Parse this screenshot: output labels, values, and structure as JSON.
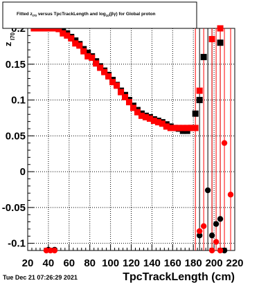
{
  "chart_data": {
    "type": "scatter",
    "title": "Fitted  z_{I70} versus TpcTrackLength and log_{10}(#beta#gamma) for Global proton",
    "title_parts": {
      "pre": "Fitted  z",
      "sub1": "I70",
      "mid": " versus TpcTrackLength and log",
      "sub2": "10",
      "post": "(βγ) for Global proton"
    },
    "xlabel": "TpcTrackLength (cm)",
    "ylabel_main": "z",
    "ylabel_sub": "I70",
    "xlim": [
      20,
      220
    ],
    "ylim": [
      -0.11,
      0.2
    ],
    "xticks": [
      20,
      40,
      60,
      80,
      100,
      120,
      140,
      160,
      180,
      200,
      220
    ],
    "yticks": [
      -0.1,
      -0.05,
      0,
      0.05,
      0.1,
      0.15,
      0.2
    ],
    "ytick_labels": [
      "-0.1",
      "-0.05",
      "0",
      "0.05",
      "0.1",
      "0.15",
      "0.2"
    ],
    "grid": true,
    "footer": "Tue Dec 21 07:26:29 2021",
    "series": [
      {
        "color": "#000000",
        "marker": "square",
        "points": [
          [
            26,
            0.205
          ],
          [
            30,
            0.207
          ],
          [
            34,
            0.209
          ],
          [
            38,
            0.207
          ],
          [
            42,
            0.205
          ],
          [
            46,
            0.203
          ],
          [
            50,
            0.2
          ],
          [
            54,
            0.197
          ],
          [
            58,
            0.193
          ],
          [
            62,
            0.188
          ],
          [
            66,
            0.183
          ],
          [
            70,
            0.178
          ],
          [
            74,
            0.171
          ],
          [
            78,
            0.166
          ],
          [
            82,
            0.161
          ],
          [
            86,
            0.154
          ],
          [
            90,
            0.147
          ],
          [
            94,
            0.141
          ],
          [
            98,
            0.135
          ],
          [
            102,
            0.128
          ],
          [
            106,
            0.121
          ],
          [
            110,
            0.113
          ],
          [
            114,
            0.107
          ],
          [
            118,
            0.1
          ],
          [
            122,
            0.092
          ],
          [
            126,
            0.086
          ],
          [
            130,
            0.081
          ],
          [
            134,
            0.078
          ],
          [
            138,
            0.076
          ],
          [
            142,
            0.073
          ],
          [
            146,
            0.071
          ],
          [
            150,
            0.069
          ],
          [
            154,
            0.066
          ],
          [
            158,
            0.063
          ],
          [
            162,
            0.061
          ],
          [
            166,
            0.06
          ],
          [
            170,
            0.057
          ],
          [
            174,
            0.057
          ],
          [
            178,
            0.061
          ],
          [
            182,
            0.081
          ],
          [
            186,
            0.1
          ],
          [
            190,
            0.16
          ],
          [
            206,
            0.18
          ]
        ]
      },
      {
        "color": "#ff0000",
        "marker": "square",
        "points": [
          [
            26,
            0.203
          ],
          [
            30,
            0.209
          ],
          [
            34,
            0.212
          ],
          [
            38,
            0.205
          ],
          [
            42,
            0.202
          ],
          [
            46,
            0.201
          ],
          [
            50,
            0.199
          ],
          [
            54,
            0.193
          ],
          [
            58,
            0.19
          ],
          [
            62,
            0.186
          ],
          [
            66,
            0.179
          ],
          [
            70,
            0.176
          ],
          [
            74,
            0.168
          ],
          [
            78,
            0.161
          ],
          [
            82,
            0.159
          ],
          [
            86,
            0.151
          ],
          [
            90,
            0.145
          ],
          [
            94,
            0.139
          ],
          [
            98,
            0.133
          ],
          [
            102,
            0.125
          ],
          [
            106,
            0.12
          ],
          [
            110,
            0.111
          ],
          [
            114,
            0.104
          ],
          [
            118,
            0.097
          ],
          [
            122,
            0.089
          ],
          [
            126,
            0.083
          ],
          [
            130,
            0.078
          ],
          [
            134,
            0.076
          ],
          [
            138,
            0.074
          ],
          [
            142,
            0.071
          ],
          [
            146,
            0.069
          ],
          [
            150,
            0.067
          ],
          [
            154,
            0.063
          ],
          [
            158,
            0.061
          ],
          [
            162,
            0.061
          ],
          [
            166,
            0.061
          ],
          [
            170,
            0.061
          ],
          [
            174,
            0.061
          ],
          [
            178,
            0.061
          ],
          [
            182,
            0.061
          ],
          [
            186,
            0.113
          ],
          [
            198,
            0.185
          ],
          [
            206,
            0.222
          ]
        ]
      },
      {
        "color": "#000000",
        "marker": "circle",
        "points": [
          [
            40,
            -0.109
          ],
          [
            46,
            -0.109
          ],
          [
            186,
            -0.089
          ],
          [
            194,
            -0.026
          ],
          [
            198,
            -0.089
          ],
          [
            202,
            -0.073
          ],
          [
            206,
            -0.066
          ],
          [
            210,
            -0.115
          ]
        ]
      },
      {
        "color": "#ff0000",
        "marker": "circle",
        "points": [
          [
            38,
            -0.115
          ],
          [
            42,
            -0.115
          ],
          [
            46,
            -0.115
          ],
          [
            186,
            -0.083
          ],
          [
            190,
            -0.076
          ],
          [
            198,
            -0.115
          ],
          [
            202,
            -0.098
          ],
          [
            206,
            -0.115
          ],
          [
            210,
            0.04
          ],
          [
            216,
            -0.032
          ]
        ]
      }
    ],
    "error_bars": [
      {
        "series": 0,
        "x": 186,
        "lo": -0.11,
        "hi": 0.2
      },
      {
        "series": 0,
        "x": 194,
        "lo": -0.11,
        "hi": 0.2
      },
      {
        "series": 0,
        "x": 198,
        "lo": -0.11,
        "hi": 0.2
      },
      {
        "series": 0,
        "x": 206,
        "lo": -0.11,
        "hi": 0.2
      },
      {
        "series": 1,
        "x": 182,
        "lo": -0.11,
        "hi": 0.2
      },
      {
        "series": 1,
        "x": 190,
        "lo": -0.11,
        "hi": 0.2
      },
      {
        "series": 1,
        "x": 198,
        "lo": -0.11,
        "hi": 0.2
      },
      {
        "series": 1,
        "x": 202,
        "lo": -0.11,
        "hi": 0.2
      },
      {
        "series": 1,
        "x": 206,
        "lo": -0.11,
        "hi": 0.2
      },
      {
        "series": 1,
        "x": 210,
        "lo": -0.11,
        "hi": 0.2
      },
      {
        "series": 1,
        "x": 216,
        "lo": -0.11,
        "hi": 0.2
      }
    ]
  }
}
